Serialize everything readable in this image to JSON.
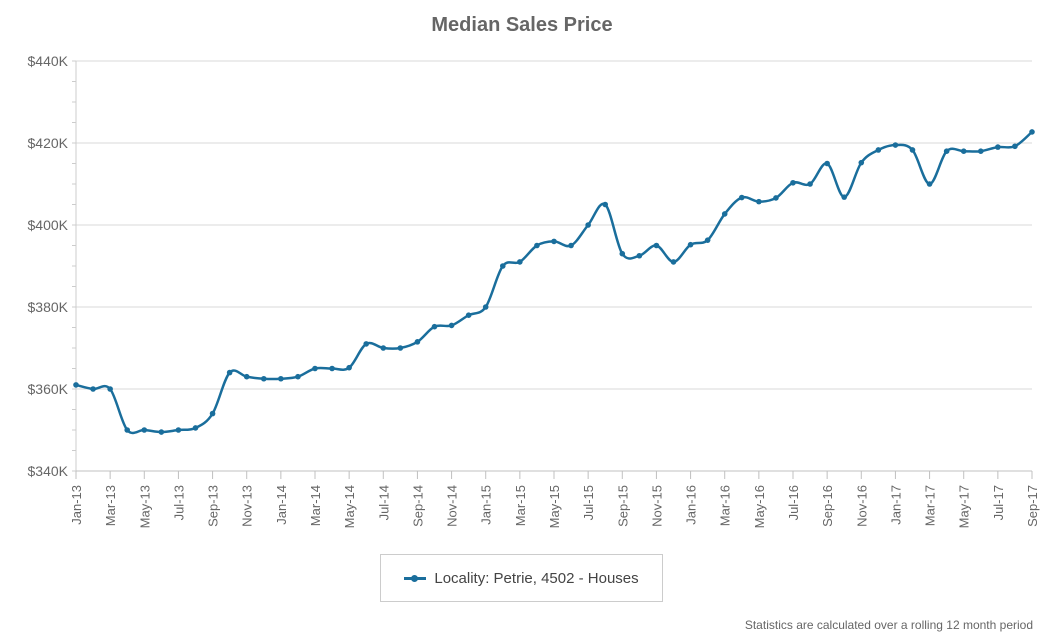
{
  "chart_data": {
    "type": "line",
    "title": "Median Sales Price",
    "xlabel": "",
    "ylabel": "",
    "ylim": [
      340000,
      440000
    ],
    "y_ticks": [
      340000,
      360000,
      380000,
      400000,
      420000,
      440000
    ],
    "y_tick_labels": [
      "$340K",
      "$360K",
      "$380K",
      "$400K",
      "$420K",
      "$440K"
    ],
    "x_tick_labels": [
      "Jan-13",
      "Mar-13",
      "May-13",
      "Jul-13",
      "Sep-13",
      "Nov-13",
      "Jan-14",
      "Mar-14",
      "May-14",
      "Jul-14",
      "Sep-14",
      "Nov-14",
      "Jan-15",
      "Mar-15",
      "May-15",
      "Jul-15",
      "Sep-15",
      "Nov-15",
      "Jan-16",
      "Mar-16",
      "May-16",
      "Jul-16",
      "Sep-16",
      "Nov-16",
      "Jan-17",
      "Mar-17",
      "May-17",
      "Jul-17",
      "Sep-17"
    ],
    "x": [
      "Jan-13",
      "Feb-13",
      "Mar-13",
      "Apr-13",
      "May-13",
      "Jun-13",
      "Jul-13",
      "Aug-13",
      "Sep-13",
      "Oct-13",
      "Nov-13",
      "Dec-13",
      "Jan-14",
      "Feb-14",
      "Mar-14",
      "Apr-14",
      "May-14",
      "Jun-14",
      "Jul-14",
      "Aug-14",
      "Sep-14",
      "Oct-14",
      "Nov-14",
      "Dec-14",
      "Jan-15",
      "Feb-15",
      "Mar-15",
      "Apr-15",
      "May-15",
      "Jun-15",
      "Jul-15",
      "Aug-15",
      "Sep-15",
      "Oct-15",
      "Nov-15",
      "Dec-15",
      "Jan-16",
      "Feb-16",
      "Mar-16",
      "Apr-16",
      "May-16",
      "Jun-16",
      "Jul-16",
      "Aug-16",
      "Sep-16",
      "Oct-16",
      "Nov-16",
      "Dec-16",
      "Jan-17",
      "Feb-17",
      "Mar-17",
      "Apr-17",
      "May-17",
      "Jun-17",
      "Jul-17",
      "Aug-17",
      "Sep-17"
    ],
    "series": [
      {
        "name": "Locality: Petrie, 4502 - Houses",
        "color": "#1a6e9c",
        "values": [
          361000,
          360000,
          360000,
          350000,
          350000,
          349500,
          350000,
          350500,
          354000,
          364000,
          363000,
          362500,
          362500,
          363000,
          365000,
          365000,
          365200,
          371000,
          370000,
          370000,
          371500,
          375200,
          375500,
          378000,
          380000,
          390000,
          391000,
          395000,
          396000,
          395000,
          400000,
          405000,
          393000,
          392500,
          395000,
          391000,
          395200,
          396300,
          402700,
          406700,
          405700,
          406600,
          410300,
          410000,
          415000,
          406800,
          415200,
          418300,
          419500,
          418300,
          410000,
          418000,
          418000,
          418000,
          419000,
          419200,
          422700
        ]
      }
    ],
    "grid": true,
    "legend_position": "bottom-center"
  },
  "legend": {
    "label": "Locality: Petrie, 4502 - Houses"
  },
  "footnote": "Statistics are calculated over a rolling 12 month period"
}
